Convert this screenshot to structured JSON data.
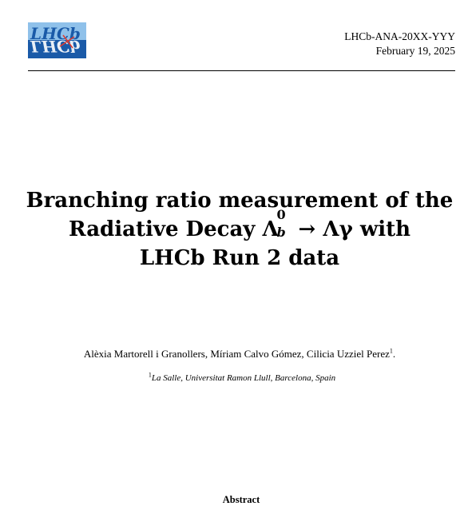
{
  "header": {
    "logo_text": "LHCb",
    "doc_number": "LHCb-ANA-20XX-YYY",
    "date": "February 19, 2025"
  },
  "title": {
    "line1": "Branching ratio measurement of the",
    "line2_prefix": "Radiative Decay",
    "lambda": "Λ",
    "sup": "0",
    "sub": "b",
    "arrow": "→",
    "lambda_gamma": "Λγ",
    "line2_suffix": "with",
    "line3": "LHCb Run 2 data"
  },
  "authors": {
    "names": "Alèxia Martorell i Granollers, Míriam Calvo Gómez, Cilicia Uzziel Perez",
    "mark": "1",
    "end": "."
  },
  "affiliation": {
    "mark": "1",
    "text": "La Salle, Universitat Ramon Llull, Barcelona, Spain"
  },
  "abstract": {
    "heading": "Abstract"
  },
  "colors": {
    "logo_bg": "#1a5aa8",
    "logo_accent": "#e23b2e"
  }
}
